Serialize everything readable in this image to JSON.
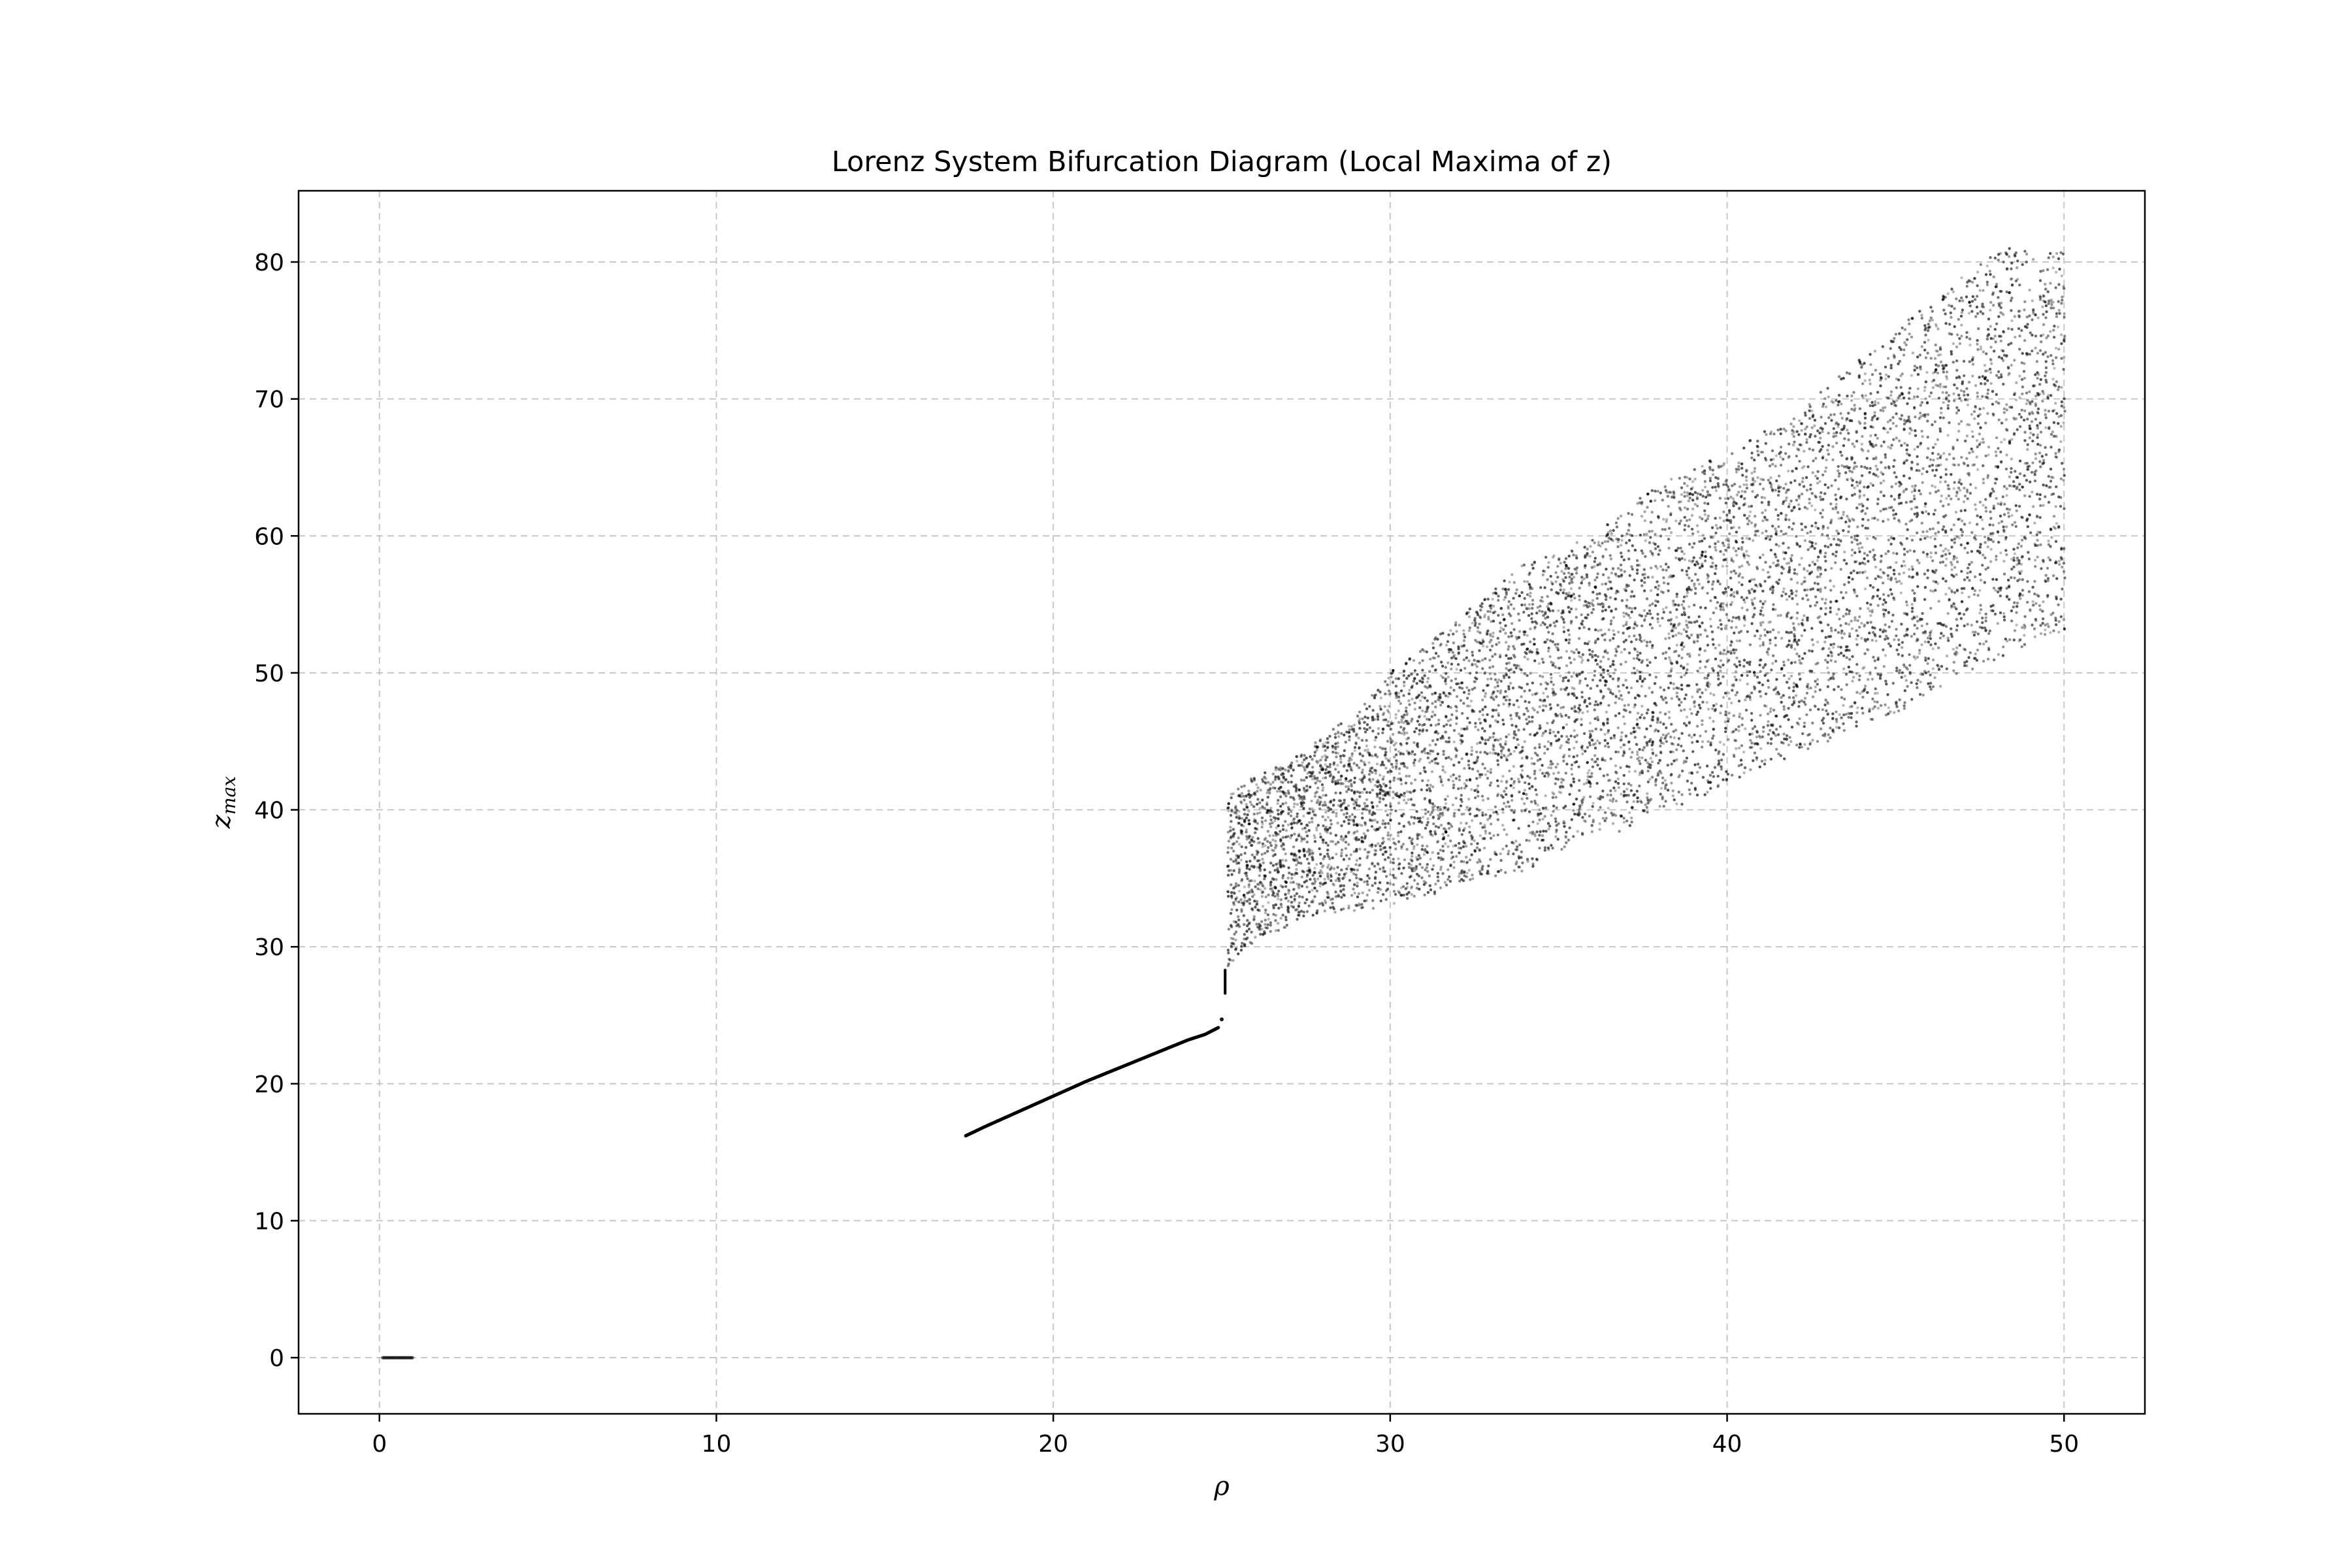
{
  "chart_data": {
    "type": "scatter",
    "title": "Lorenz System Bifurcation Diagram (Local Maxima of z)",
    "xlabel": "ρ",
    "ylabel": "z",
    "ylabel_subscript": "max",
    "xlim": [
      -2.4,
      52.4
    ],
    "ylim": [
      -4.1,
      85.2
    ],
    "xticks": [
      0,
      10,
      20,
      30,
      40,
      50
    ],
    "yticks": [
      0,
      10,
      20,
      30,
      40,
      50,
      60,
      70,
      80
    ],
    "grid": true,
    "marker_color": "#000000",
    "series": [
      {
        "x": [
          0.1,
          0.2,
          0.3,
          0.4,
          0.5,
          0.6,
          0.7,
          0.8,
          0.9,
          1.0
        ],
        "values": [
          0,
          0,
          0,
          0,
          0,
          0,
          0,
          0,
          0,
          0
        ]
      },
      {
        "x": [
          17.4,
          18.0,
          19.0,
          20.0,
          21.0,
          22.0,
          23.0,
          24.0,
          24.5,
          24.9,
          25.0,
          25.1
        ],
        "values": [
          16.2,
          16.9,
          18.0,
          19.1,
          20.2,
          21.2,
          22.2,
          23.2,
          23.6,
          24.1,
          24.7,
          27.5
        ]
      },
      {
        "x": [
          25.2,
          26,
          27,
          28,
          29,
          30,
          31,
          32,
          33,
          34,
          35,
          36,
          37,
          38,
          39,
          40,
          41,
          42,
          43,
          44,
          45,
          46,
          47,
          48,
          49,
          50
        ],
        "lower": [
          28.5,
          30.5,
          31.5,
          32.5,
          32.5,
          33,
          33.5,
          34.5,
          35,
          35.5,
          37,
          38,
          38.5,
          40,
          40.5,
          42,
          43,
          44,
          45,
          46,
          47,
          48.5,
          50,
          51,
          52,
          53
        ],
        "upper": [
          41,
          42.5,
          43.5,
          45.5,
          47,
          50,
          52,
          54,
          56,
          58,
          59,
          60,
          62,
          64,
          65,
          66,
          67.5,
          69,
          71,
          73,
          75,
          77,
          79,
          81,
          81,
          81
        ]
      }
    ]
  }
}
